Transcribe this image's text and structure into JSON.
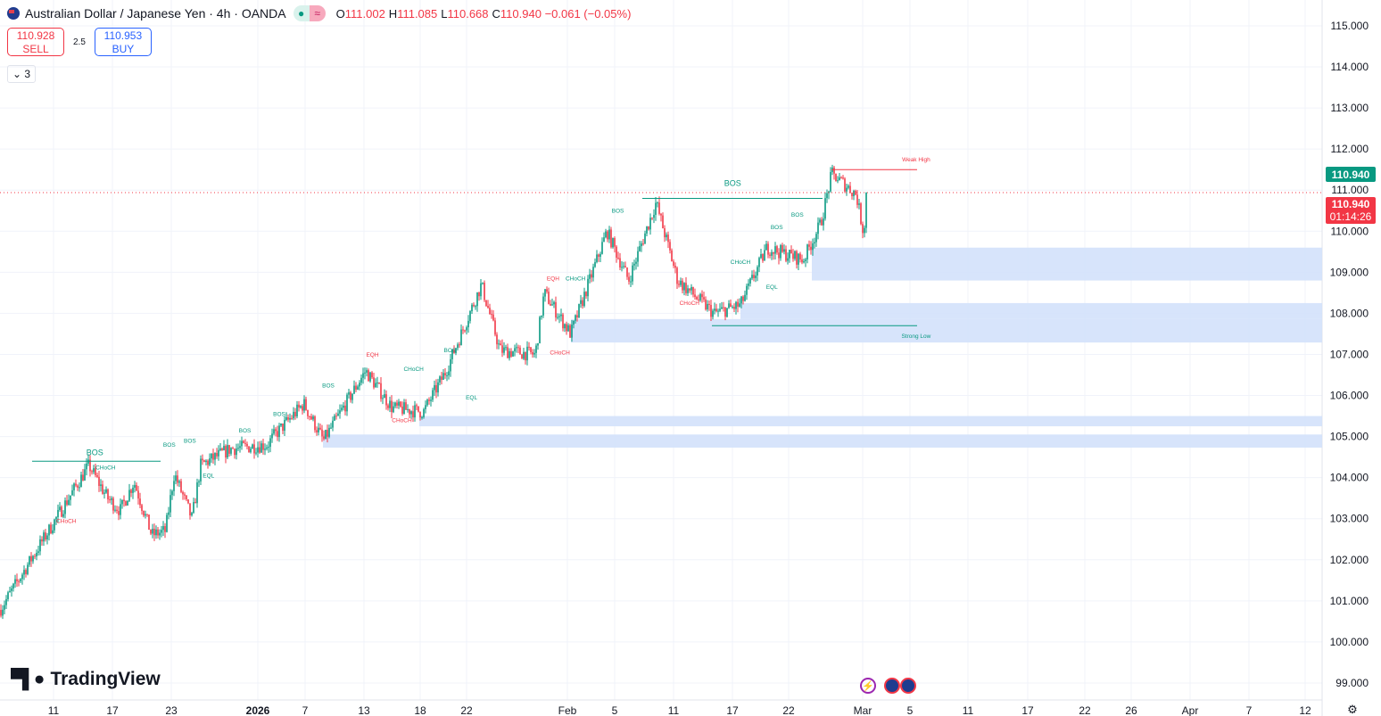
{
  "header": {
    "title": "Australian Dollar / Japanese Yen · 4h · OANDA",
    "open_label": "O",
    "open": "111.002",
    "high_label": "H",
    "high": "111.085",
    "low_label": "L",
    "low": "110.668",
    "close_label": "C",
    "close": "110.940",
    "change": "−0.061 (−0.05%)",
    "status_icon": "≈"
  },
  "trade": {
    "sell_price": "110.928",
    "sell_label": "SELL",
    "spread": "2.5",
    "buy_price": "110.953",
    "buy_label": "BUY"
  },
  "indicators_toggle": "3",
  "logo": "TradingView",
  "price_axis": {
    "labels": [
      "115.000",
      "114.000",
      "113.000",
      "112.000",
      "111.000",
      "110.000",
      "109.000",
      "108.000",
      "107.000",
      "106.000",
      "105.000",
      "104.000",
      "103.000",
      "102.000",
      "101.000",
      "100.000",
      "99.000"
    ],
    "last_price": "110.940",
    "bid_price": "110.940",
    "countdown": "01:14:26"
  },
  "time_axis": {
    "labels": [
      "11",
      "17",
      "23",
      "2026",
      "7",
      "13",
      "18",
      "22",
      "Feb",
      "5",
      "11",
      "17",
      "22",
      "Mar",
      "5",
      "11",
      "17",
      "22",
      "26",
      "Apr",
      "7",
      "12"
    ]
  },
  "colors": {
    "up": "#089981",
    "down": "#f23645",
    "zone": "#d3e1fb"
  },
  "chart_data": {
    "type": "candlestick",
    "title": "AUDJPY 4h",
    "ylim": [
      98.6,
      115.6
    ],
    "price_path_days_since_dec11": [
      [
        0,
        102.9
      ],
      [
        3.6,
        104.3
      ],
      [
        5.5,
        103.5
      ],
      [
        6.8,
        103.2
      ],
      [
        8.2,
        103.9
      ],
      [
        10,
        102.6
      ],
      [
        11.4,
        102.7
      ],
      [
        14.1,
        103.0
      ],
      [
        15,
        104.3
      ],
      [
        12.3,
        104.1
      ],
      [
        18,
        104.7
      ],
      [
        22.4,
        105.0
      ],
      [
        21.8,
        104.8
      ],
      [
        25.5,
        105.8
      ],
      [
        27.5,
        104.9
      ],
      [
        31.8,
        106.6
      ],
      [
        34.5,
        105.7
      ],
      [
        37.7,
        105.6
      ],
      [
        40,
        106.6
      ],
      [
        43.6,
        108.7
      ],
      [
        45.5,
        107.1
      ],
      [
        49.1,
        107.0
      ],
      [
        50,
        108.5
      ],
      [
        52.7,
        107.5
      ],
      [
        56.4,
        110.0
      ],
      [
        58.6,
        108.8
      ],
      [
        61.4,
        110.7
      ],
      [
        63.6,
        108.8
      ],
      [
        67.3,
        108.0
      ],
      [
        70,
        108.2
      ],
      [
        72.7,
        109.6
      ],
      [
        76.4,
        109.3
      ],
      [
        78.2,
        110.2
      ],
      [
        79.3,
        111.4
      ],
      [
        81.8,
        110.9
      ],
      [
        82.5,
        110.0
      ],
      [
        83.2,
        110.94
      ]
    ],
    "zones": [
      [
        109.6,
        108.8
      ],
      [
        108.25,
        107.86
      ],
      [
        107.86,
        107.29
      ],
      [
        105.5,
        105.25
      ],
      [
        105.05,
        104.73
      ]
    ],
    "labels": [
      {
        "text": "BOS",
        "price": 104.55,
        "day": 4.2,
        "c": "up"
      },
      {
        "text": "CHoCH",
        "price": 104.2,
        "day": 5.3,
        "c": "up"
      },
      {
        "text": "CHoCH",
        "price": 102.9,
        "day": 1.3,
        "c": "down"
      },
      {
        "text": "BOS",
        "price": 104.75,
        "day": 11.8,
        "c": "up"
      },
      {
        "text": "BOS",
        "price": 104.85,
        "day": 13.9,
        "c": "up"
      },
      {
        "text": "EQL",
        "price": 104.0,
        "day": 15.8,
        "c": "up"
      },
      {
        "text": "BOS",
        "price": 105.1,
        "day": 19.5,
        "c": "up"
      },
      {
        "text": "BOS",
        "price": 105.5,
        "day": 23,
        "c": "up"
      },
      {
        "text": "BOS",
        "price": 106.2,
        "day": 28,
        "c": "up"
      },
      {
        "text": "EQH",
        "price": 106.95,
        "day": 32.5,
        "c": "down"
      },
      {
        "text": "CHoCH",
        "price": 106.6,
        "day": 36.7,
        "c": "up"
      },
      {
        "text": "CHoCH",
        "price": 105.35,
        "day": 35.5,
        "c": "down"
      },
      {
        "text": "EQL",
        "price": 105.9,
        "day": 42.6,
        "c": "up"
      },
      {
        "text": "BOS",
        "price": 107.05,
        "day": 40.4,
        "c": "up"
      },
      {
        "text": "EQH",
        "price": 108.8,
        "day": 50.9,
        "c": "down"
      },
      {
        "text": "CHoCH",
        "price": 108.8,
        "day": 53.2,
        "c": "up"
      },
      {
        "text": "CHoCH",
        "price": 107.0,
        "day": 51.6,
        "c": "down"
      },
      {
        "text": "BOS",
        "price": 110.45,
        "day": 57.5,
        "c": "up"
      },
      {
        "text": "BOS",
        "price": 111.1,
        "day": 69.2,
        "c": "up"
      },
      {
        "text": "CHoCH",
        "price": 108.2,
        "day": 64.8,
        "c": "down"
      },
      {
        "text": "CHoCH",
        "price": 109.2,
        "day": 70,
        "c": "up"
      },
      {
        "text": "EQL",
        "price": 108.6,
        "day": 73.2,
        "c": "up"
      },
      {
        "text": "BOS",
        "price": 110.05,
        "day": 73.7,
        "c": "up"
      },
      {
        "text": "BOS",
        "price": 110.35,
        "day": 75.8,
        "c": "up"
      },
      {
        "text": "Weak High",
        "price": 111.7,
        "day": 87.9,
        "c": "down"
      },
      {
        "text": "Strong Low",
        "price": 107.4,
        "day": 87.9,
        "c": "up"
      }
    ]
  }
}
